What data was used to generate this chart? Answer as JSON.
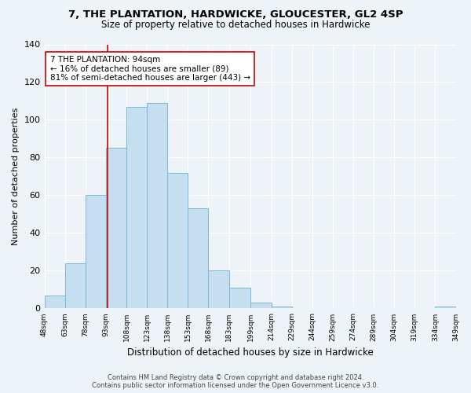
{
  "title_line1": "7, THE PLANTATION, HARDWICKE, GLOUCESTER, GL2 4SP",
  "title_line2": "Size of property relative to detached houses in Hardwicke",
  "xlabel": "Distribution of detached houses by size in Hardwicke",
  "ylabel": "Number of detached properties",
  "bar_edges": [
    48,
    63,
    78,
    93,
    108,
    123,
    138,
    153,
    168,
    183,
    199,
    214,
    229,
    244,
    259,
    274,
    289,
    304,
    319,
    334,
    349
  ],
  "bar_heights": [
    7,
    24,
    60,
    85,
    107,
    109,
    72,
    53,
    20,
    11,
    3,
    1,
    0,
    0,
    0,
    0,
    0,
    0,
    0,
    1
  ],
  "bar_color": "#c5dff0",
  "bar_edge_color": "#7bb8d8",
  "reference_line_x": 94,
  "reference_line_color": "#cc0000",
  "ylim": [
    0,
    140
  ],
  "yticks": [
    0,
    20,
    40,
    60,
    80,
    100,
    120,
    140
  ],
  "annotation_text": "7 THE PLANTATION: 94sqm\n← 16% of detached houses are smaller (89)\n81% of semi-detached houses are larger (443) →",
  "annotation_box_color": "#ffffff",
  "annotation_box_edge_color": "#cc0000",
  "footer_line1": "Contains HM Land Registry data © Crown copyright and database right 2024.",
  "footer_line2": "Contains public sector information licensed under the Open Government Licence v3.0.",
  "tick_labels": [
    "48sqm",
    "63sqm",
    "78sqm",
    "93sqm",
    "108sqm",
    "123sqm",
    "138sqm",
    "153sqm",
    "168sqm",
    "183sqm",
    "199sqm",
    "214sqm",
    "229sqm",
    "244sqm",
    "259sqm",
    "274sqm",
    "289sqm",
    "304sqm",
    "319sqm",
    "334sqm",
    "349sqm"
  ],
  "background_color": "#eef3f8",
  "grid_color": "#ffffff",
  "title1_fontsize": 9.5,
  "title2_fontsize": 8.5,
  "ylabel_fontsize": 8,
  "xlabel_fontsize": 8.5,
  "ytick_fontsize": 8,
  "xtick_fontsize": 6.5,
  "annotation_fontsize": 7.5,
  "footer_fontsize": 6.0
}
